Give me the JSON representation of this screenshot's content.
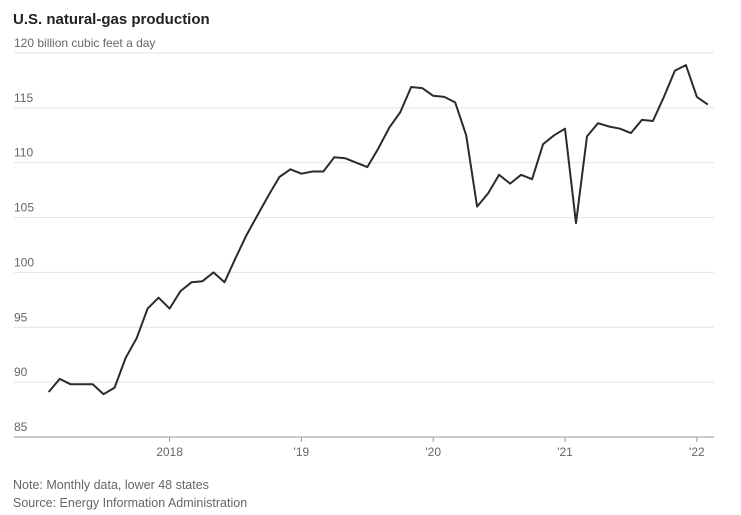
{
  "chart_data": {
    "type": "line",
    "title": "U.S. natural-gas production",
    "note": "Note: Monthly data, lower 48 states",
    "source": "Source: Energy Information Administration",
    "x": [
      2017.0833,
      2017.1667,
      2017.25,
      2017.3333,
      2017.4167,
      2017.5,
      2017.5833,
      2017.6667,
      2017.75,
      2017.8333,
      2017.9167,
      2018,
      2018.0833,
      2018.1667,
      2018.25,
      2018.3333,
      2018.4167,
      2018.5,
      2018.5833,
      2018.6667,
      2018.75,
      2018.8333,
      2018.9167,
      2019,
      2019.0833,
      2019.1667,
      2019.25,
      2019.3333,
      2019.4167,
      2019.5,
      2019.5833,
      2019.6667,
      2019.75,
      2019.8333,
      2019.9167,
      2020,
      2020.0833,
      2020.1667,
      2020.25,
      2020.3333,
      2020.4167,
      2020.5,
      2020.5833,
      2020.6667,
      2020.75,
      2020.8333,
      2020.9167,
      2021,
      2021.0833,
      2021.1667,
      2021.25,
      2021.3333,
      2021.4167,
      2021.5,
      2021.5833,
      2021.6667,
      2021.75,
      2021.8333,
      2021.9167,
      2022,
      2022.0833
    ],
    "series": [
      {
        "name": "U.S. natural-gas production",
        "color": "#2b2b2b",
        "values": [
          89.1,
          90.3,
          89.8,
          89.8,
          89.8,
          88.9,
          89.5,
          92.2,
          94.0,
          96.7,
          97.7,
          96.7,
          98.3,
          99.1,
          99.2,
          100.0,
          99.1,
          101.3,
          103.4,
          105.2,
          107.0,
          108.7,
          109.4,
          109.0,
          109.2,
          109.2,
          110.5,
          110.4,
          110.0,
          109.6,
          111.3,
          113.2,
          114.6,
          116.9,
          116.8,
          116.1,
          116.0,
          115.5,
          112.5,
          106.0,
          107.2,
          108.9,
          108.1,
          108.9,
          108.5,
          111.7,
          112.5,
          113.1,
          104.5,
          112.4,
          113.6,
          113.3,
          113.1,
          112.7,
          113.9,
          113.8,
          116.0,
          118.4,
          118.9,
          116.0,
          115.3
        ]
      }
    ],
    "xlim": [
      2016.82,
      2022.13
    ],
    "xticks": [
      {
        "value": 2018,
        "label": "2018"
      },
      {
        "value": 2019,
        "label": "'19"
      },
      {
        "value": 2020,
        "label": "'20"
      },
      {
        "value": 2021,
        "label": "'21"
      },
      {
        "value": 2022,
        "label": "'22"
      }
    ],
    "ylim": [
      85,
      120
    ],
    "yticks": [
      85,
      90,
      95,
      100,
      105,
      110,
      115,
      {
        "value": 120,
        "label": "120 billion cubic feet a day"
      }
    ],
    "grid": true
  }
}
